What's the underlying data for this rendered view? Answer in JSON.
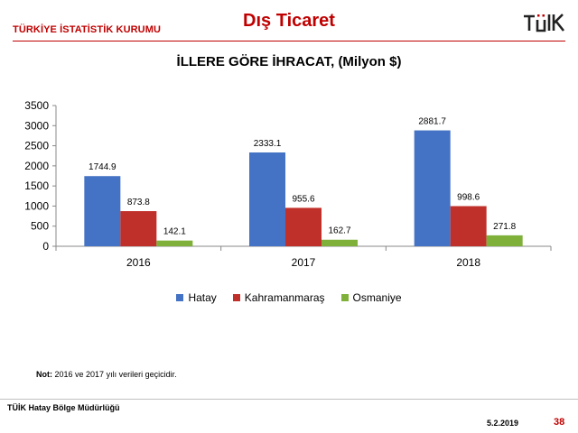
{
  "header": {
    "org_name": "TÜRKİYE İSTATİSTİK KURUMU",
    "title": "Dış Ticaret",
    "logo_text": "TÜİK"
  },
  "chart_data": {
    "type": "bar",
    "title": "İLLERE GÖRE İHRACAT, (Milyon $)",
    "categories": [
      "2016",
      "2017",
      "2018"
    ],
    "series": [
      {
        "name": "Hatay",
        "color": "#4472c4",
        "values": [
          1744.9,
          2333.1,
          2881.7
        ],
        "labels": [
          "1744.9",
          "2333.1",
          "2881.7"
        ]
      },
      {
        "name": "Kahramanmaraş",
        "color": "#c0302a",
        "values": [
          873.8,
          955.6,
          998.6
        ],
        "labels": [
          "873.8",
          "955.6",
          "998.6"
        ]
      },
      {
        "name": "Osmaniye",
        "color": "#7fb13a",
        "values": [
          142.1,
          162.7,
          271.8
        ],
        "labels": [
          "142.1",
          "162.7",
          "271.8"
        ]
      }
    ],
    "ylim": [
      0,
      3500
    ],
    "yticks": [
      0,
      500,
      1000,
      1500,
      2000,
      2500,
      3000,
      3500
    ],
    "legend_position": "bottom",
    "grid": false
  },
  "note": {
    "label": "Not:",
    "text": "2016 ve 2017 yılı verileri geçicidir."
  },
  "footer": {
    "org": "TÜİK Hatay Bölge Müdürlüğü",
    "date": "5.2.2019",
    "page": "38"
  }
}
